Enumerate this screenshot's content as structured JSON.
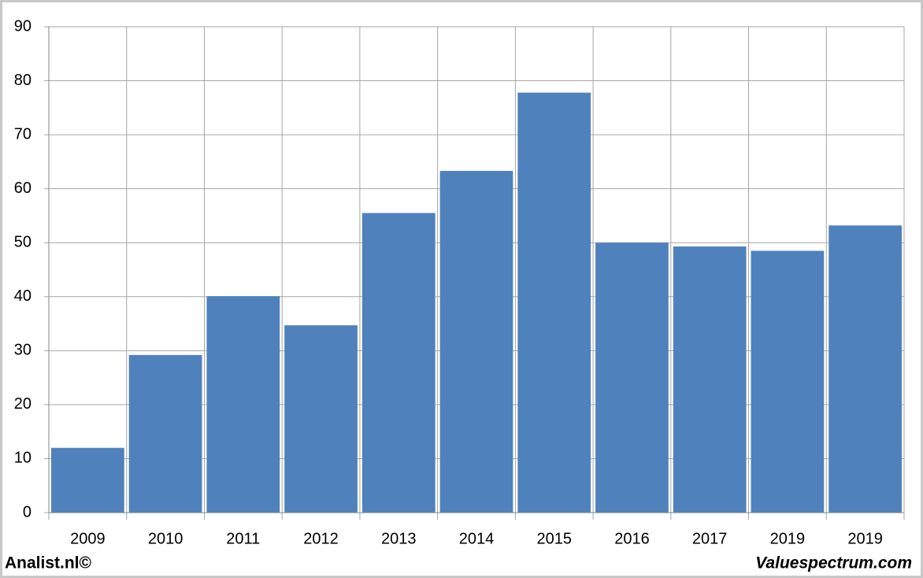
{
  "chart_data": {
    "type": "bar",
    "categories": [
      "2009",
      "2010",
      "2011",
      "2012",
      "2013",
      "2014",
      "2015",
      "2016",
      "2017",
      "2019",
      "2019"
    ],
    "values": [
      12,
      29.2,
      40.1,
      34.7,
      55.5,
      63.3,
      77.8,
      50,
      49.3,
      48.5,
      53.2
    ],
    "color": "#4f81bd",
    "ylim": [
      0,
      90
    ],
    "yticks": [
      0,
      10,
      20,
      30,
      40,
      50,
      60,
      70,
      80,
      90
    ],
    "grid": true,
    "footer_left": "Analist.nl©",
    "footer_right": "Valuespectrum.com"
  }
}
